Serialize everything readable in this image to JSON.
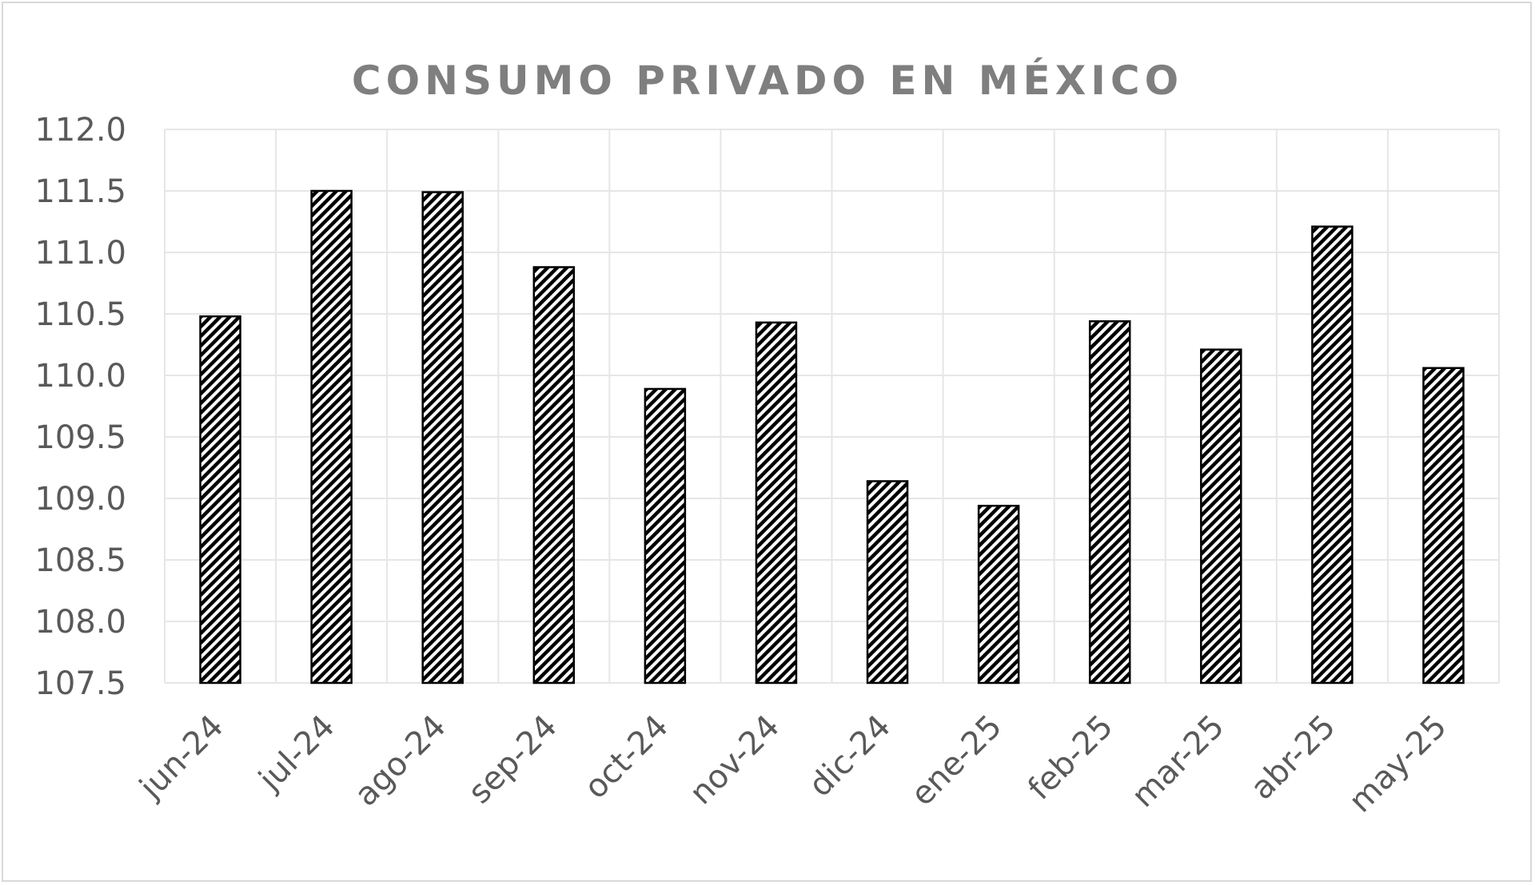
{
  "chart_data": {
    "type": "bar",
    "title": "CONSUMO PRIVADO EN MÉXICO",
    "xlabel": "",
    "ylabel": "",
    "categories": [
      "jun-24",
      "jul-24",
      "ago-24",
      "sep-24",
      "oct-24",
      "nov-24",
      "dic-24",
      "ene-25",
      "feb-25",
      "mar-25",
      "abr-25",
      "may-25"
    ],
    "values": [
      110.48,
      111.5,
      111.49,
      110.88,
      109.89,
      110.43,
      109.14,
      108.94,
      110.44,
      110.21,
      111.21,
      110.06
    ],
    "ylim": [
      107.5,
      112.0
    ],
    "yticks": [
      "107.5",
      "108.0",
      "108.5",
      "109.0",
      "109.5",
      "110.0",
      "110.5",
      "111.0",
      "111.5",
      "112.0"
    ],
    "grid": true,
    "bar_fill": "diagonal-hatch",
    "colors": {
      "bar_stroke": "#000000",
      "hatch": "#000000",
      "grid": "#e6e6e6",
      "axis_text": "#595959",
      "title": "#7f7f7f"
    }
  }
}
